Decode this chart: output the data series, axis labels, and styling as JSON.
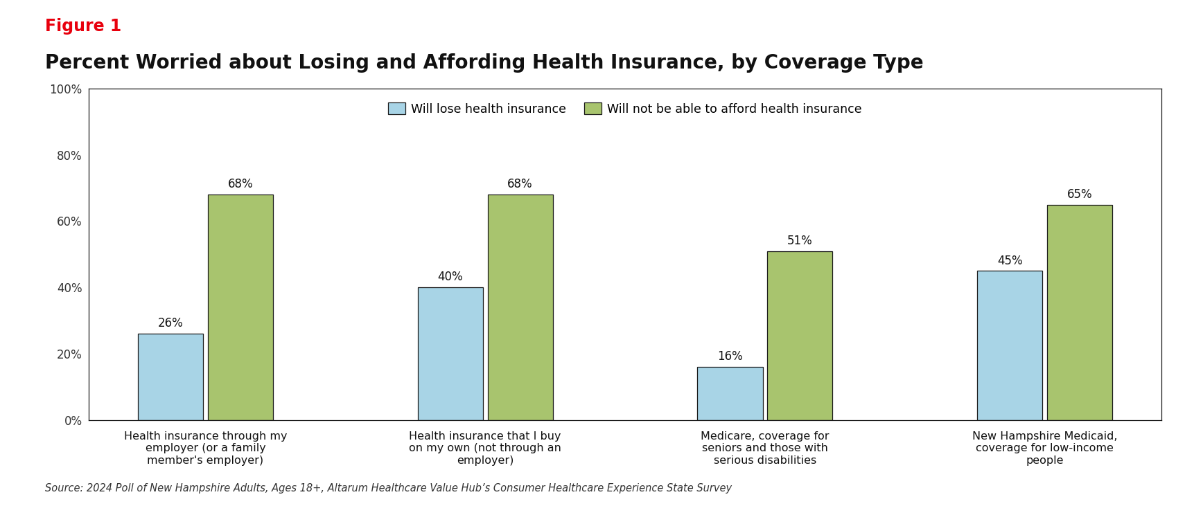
{
  "figure1_label": "Figure 1",
  "title": "Percent Worried about Losing and Affording Health Insurance, by Coverage Type",
  "categories": [
    "Health insurance through my\nemployer (or a family\nmember's employer)",
    "Health insurance that I buy\non my own (not through an\nemployer)",
    "Medicare, coverage for\nseniors and those with\nserious disabilities",
    "New Hampshire Medicaid,\ncoverage for low-income\npeople"
  ],
  "lose_values": [
    26,
    40,
    16,
    45
  ],
  "afford_values": [
    68,
    68,
    51,
    65
  ],
  "lose_color": "#a8d4e6",
  "afford_color": "#a8c46e",
  "lose_label": "Will lose health insurance",
  "afford_label": "Will not be able to afford health insurance",
  "ylim": [
    0,
    100
  ],
  "yticks": [
    0,
    20,
    40,
    60,
    80,
    100
  ],
  "ytick_labels": [
    "0%",
    "20%",
    "40%",
    "60%",
    "80%",
    "100%"
  ],
  "source_text": "Source: 2024 Poll of New Hampshire Adults, Ages 18+, Altarum Healthcare Value Hub’s Consumer Healthcare Experience State Survey",
  "figure1_color": "#e8000d",
  "title_fontsize": 20,
  "figure1_fontsize": 17,
  "bar_width": 0.28,
  "background_color": "#ffffff",
  "border_color": "#1a1a1a",
  "label_fontsize": 12,
  "tick_fontsize": 12,
  "source_fontsize": 10.5
}
